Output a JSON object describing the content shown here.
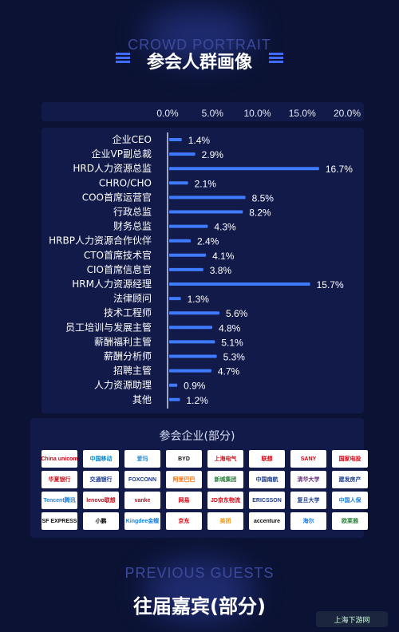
{
  "header": {
    "subtitle_en": "CROWD PORTRAIT",
    "title": "参会人群画像"
  },
  "colors": {
    "background": "#0b1233",
    "panel": "#121a4a",
    "bar": "#3f7bff",
    "text": "#ffffff"
  },
  "chart_data": {
    "type": "bar",
    "orientation": "horizontal",
    "x_tick_labels": [
      "0.0%",
      "5.0%",
      "10.0%",
      "15.0%",
      "20.0%"
    ],
    "xlim": [
      0,
      20
    ],
    "grid": false,
    "categories": [
      "企业CEO",
      "企业VP副总裁",
      "HRD人力资源总监",
      "CHRO/CHO",
      "COO首席运营官",
      "行政总监",
      "财务总监",
      "HRBP人力资源合作伙伴",
      "CTO首席技术官",
      "CIO首席信息官",
      "HRM人力资源经理",
      "法律顾问",
      "技术工程师",
      "员工培训与发展主管",
      "薪酬福利主管",
      "薪酬分析师",
      "招聘主管",
      "人力资源助理",
      "其他"
    ],
    "values": [
      1.4,
      2.9,
      16.7,
      2.1,
      8.5,
      8.2,
      4.3,
      2.4,
      4.1,
      3.8,
      15.7,
      1.3,
      5.6,
      4.8,
      5.1,
      5.3,
      4.7,
      0.9,
      1.2
    ],
    "value_labels": [
      "1.4%",
      "2.9%",
      "16.7%",
      "2.1%",
      "8.5%",
      "8.2%",
      "4.3%",
      "2.4%",
      "4.1%",
      "3.8%",
      "15.7%",
      "1.3%",
      "5.6%",
      "4.8%",
      "5.1%",
      "5.3%",
      "4.7%",
      "0.9%",
      "1.2%"
    ]
  },
  "companies": {
    "title": "参会企业(部分)",
    "logos": [
      {
        "name": "China unicom",
        "color": "#d7000f"
      },
      {
        "name": "中国移动",
        "color": "#0085d0"
      },
      {
        "name": "爱玛",
        "color": "#2a8bd1"
      },
      {
        "name": "BYD",
        "color": "#111111"
      },
      {
        "name": "上海电气",
        "color": "#c8161d"
      },
      {
        "name": "联想",
        "color": "#d7000f"
      },
      {
        "name": "SANY",
        "color": "#d7000f"
      },
      {
        "name": "国家电投",
        "color": "#d7000f"
      },
      {
        "name": "华夏银行",
        "color": "#c8161d"
      },
      {
        "name": "交通银行",
        "color": "#1a3b8f"
      },
      {
        "name": "FOXCONN",
        "color": "#1a3b8f"
      },
      {
        "name": "阿里巴巴",
        "color": "#ff6a00"
      },
      {
        "name": "新城集团",
        "color": "#2c7d3c"
      },
      {
        "name": "中国南航",
        "color": "#1a3b8f"
      },
      {
        "name": "清华大学",
        "color": "#66287a"
      },
      {
        "name": "建发房产",
        "color": "#1a3b8f"
      },
      {
        "name": "Tencent腾讯",
        "color": "#1a7fe0"
      },
      {
        "name": "lenovo联想",
        "color": "#d7000f"
      },
      {
        "name": "vanke",
        "color": "#d7000f"
      },
      {
        "name": "网易",
        "color": "#d7000f"
      },
      {
        "name": "JD京东物流",
        "color": "#d7000f"
      },
      {
        "name": "ERICSSON",
        "color": "#1a3b8f"
      },
      {
        "name": "复旦大学",
        "color": "#1a3b8f"
      },
      {
        "name": "中国人保",
        "color": "#1a7fe0"
      },
      {
        "name": "SF EXPRESS",
        "color": "#111111"
      },
      {
        "name": "小鹏",
        "color": "#111111"
      },
      {
        "name": "Kingdee金蝶",
        "color": "#1a7fe0"
      },
      {
        "name": "京东",
        "color": "#d7000f"
      },
      {
        "name": "美团",
        "color": "#f29c1f"
      },
      {
        "name": "accenture",
        "color": "#111111"
      },
      {
        "name": "海尔",
        "color": "#1a7fe0"
      },
      {
        "name": "欧莱雅",
        "color": "#2c7d3c"
      }
    ]
  },
  "footer": {
    "subtitle_en": "PREVIOUS GUESTS",
    "title": "往届嘉宾(部分)"
  },
  "watermark": "上海下游网"
}
